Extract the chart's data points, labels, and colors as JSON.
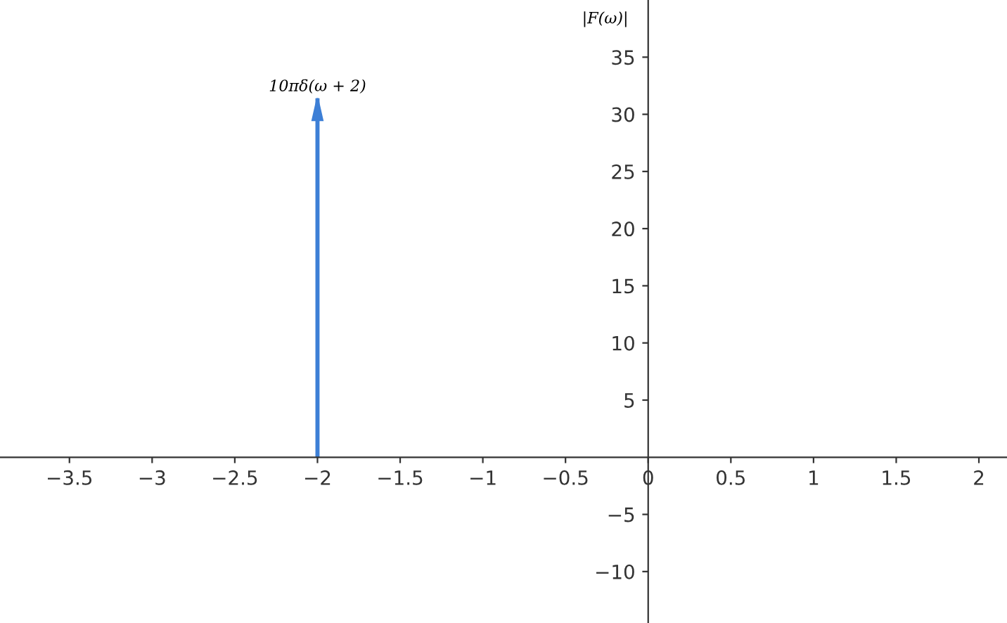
{
  "chart_data": {
    "type": "bar",
    "ylabel": "|F(ω)|",
    "x": [
      -2
    ],
    "values": [
      31.4
    ],
    "color": "#3d7fd6",
    "annotations": [
      "10πδ(ω + 2)"
    ],
    "xlim": [
      -3.92,
      2.17
    ],
    "ylim": [
      -14.5,
      40
    ],
    "xticks": [
      -3.5,
      -3,
      -2.5,
      -2,
      -1.5,
      -1,
      -0.5,
      0,
      0.5,
      1,
      1.5,
      2
    ],
    "yticks": [
      -10,
      -5,
      5,
      10,
      15,
      20,
      25,
      30,
      35
    ],
    "grid": false
  }
}
